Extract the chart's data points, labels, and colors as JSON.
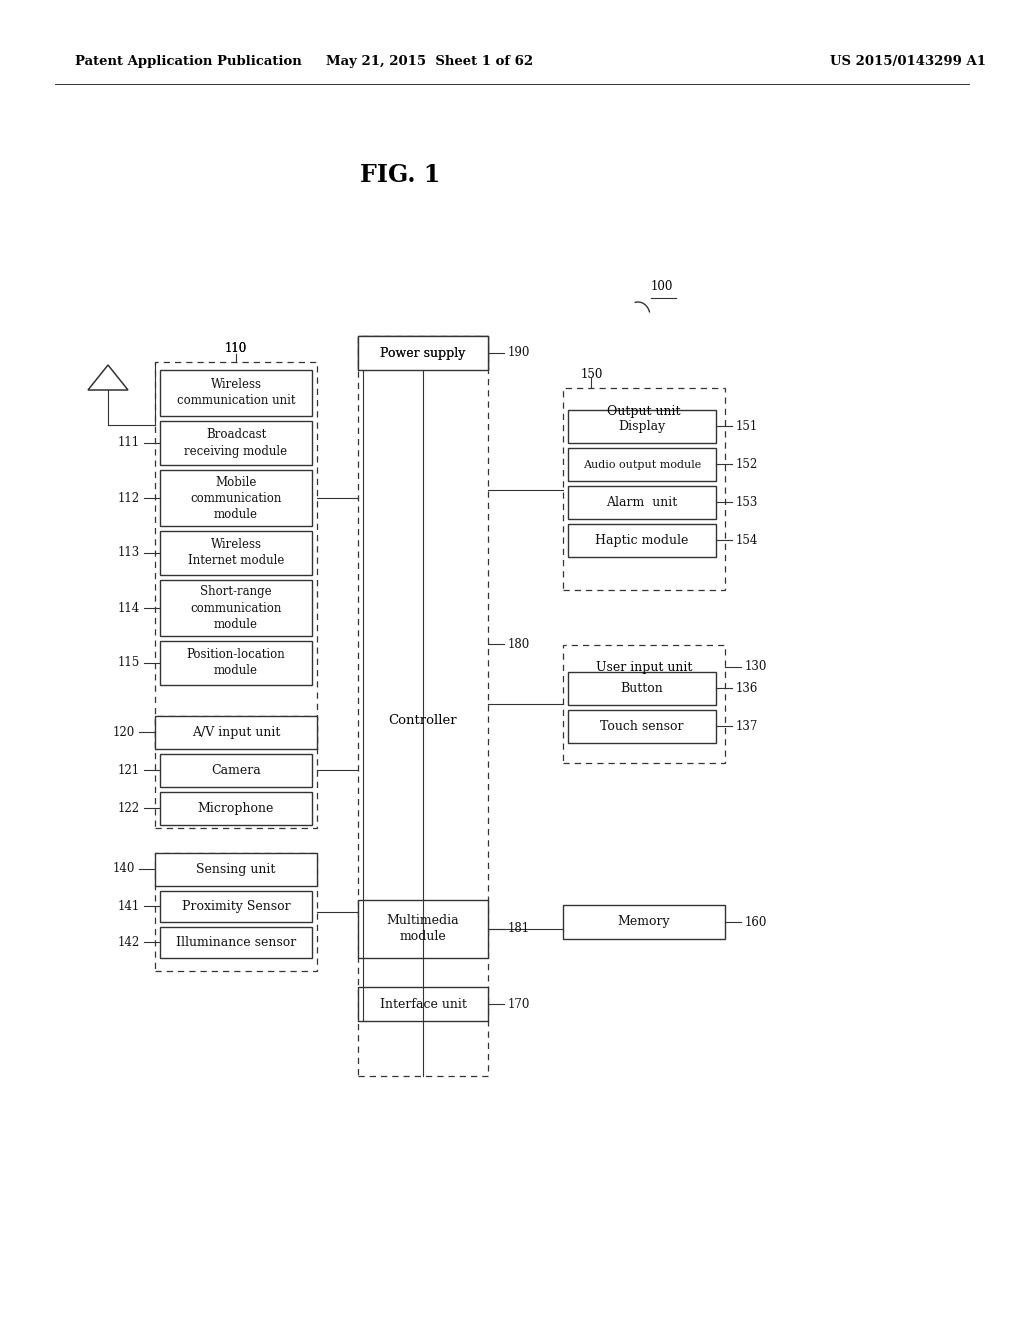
{
  "bg": "#ffffff",
  "lc": "#333333",
  "header_left": "Patent Application Publication",
  "header_mid": "May 21, 2015  Sheet 1 of 62",
  "header_right": "US 2015/0143299 A1",
  "fig_title": "FIG. 1"
}
